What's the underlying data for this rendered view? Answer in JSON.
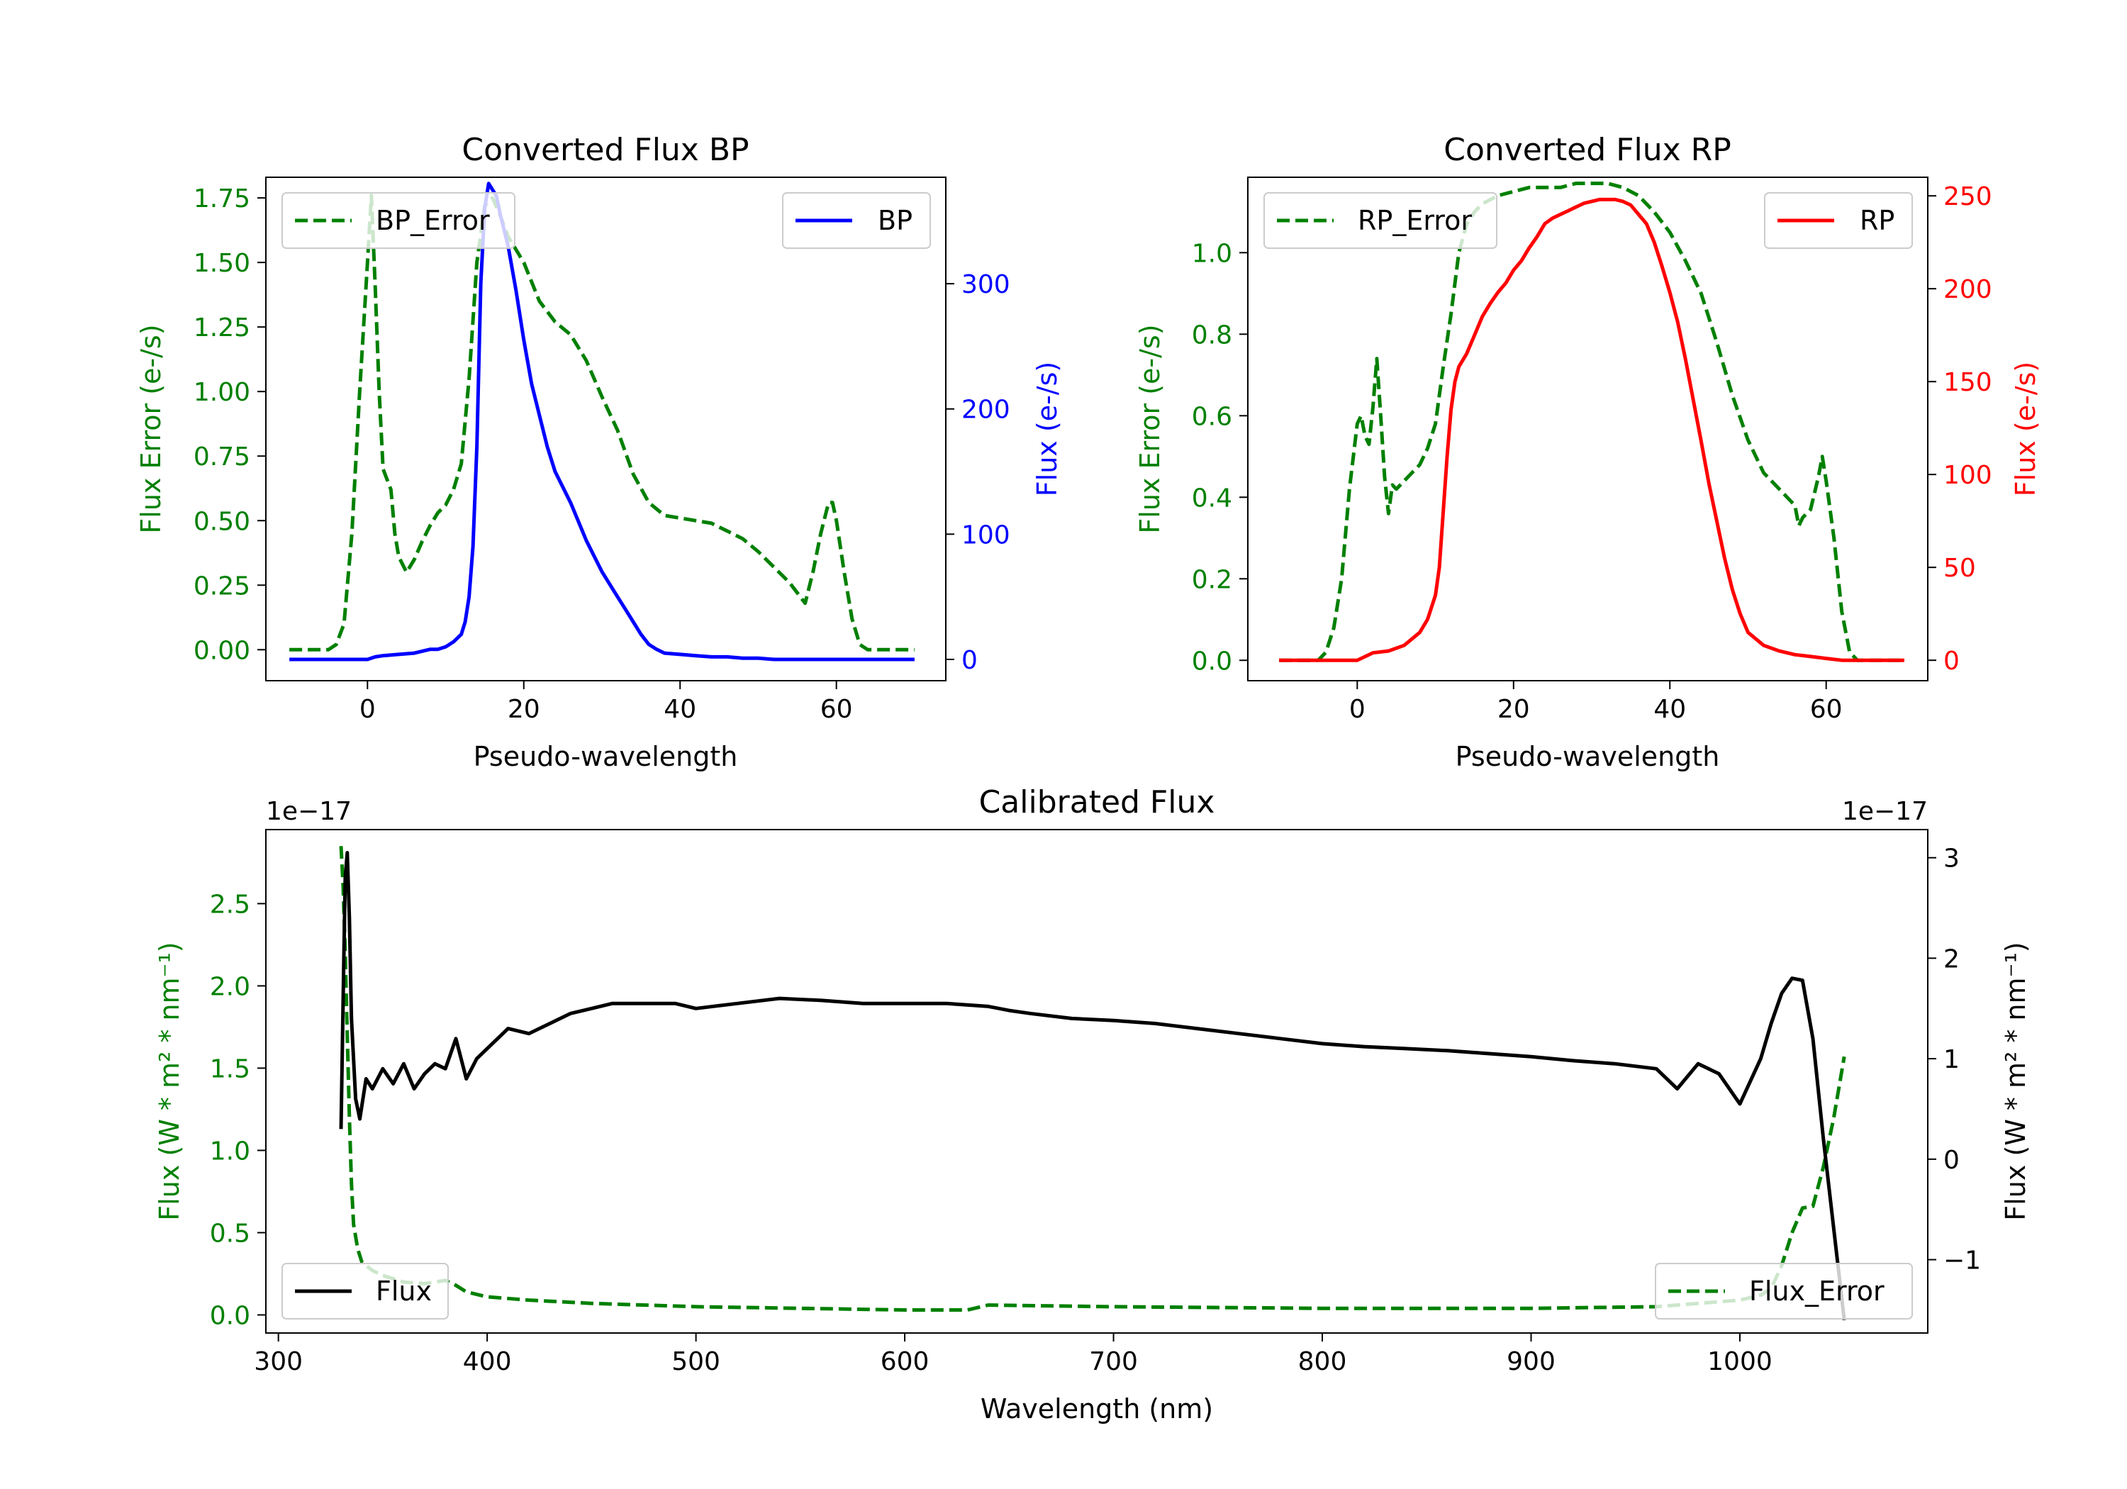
{
  "colors": {
    "error": "#008000",
    "bp": "#0000ff",
    "rp": "#ff0000",
    "flux": "#000000",
    "axis": "#000000",
    "legend_border": "#cccccc"
  },
  "chart_data": [
    {
      "type": "line",
      "title": "Converted Flux BP",
      "xlabel": "Pseudo-wavelength",
      "ylabel_left": "Flux Error (e-/s)",
      "ylabel_right": "Flux (e-/s)",
      "xlim": [
        -13,
        74
      ],
      "ylim_left": [
        -0.12,
        1.83
      ],
      "ylim_right": [
        -17,
        385
      ],
      "xticks": [
        0,
        20,
        40,
        60
      ],
      "yticks_left": [
        0.0,
        0.25,
        0.5,
        0.75,
        1.0,
        1.25,
        1.5,
        1.75
      ],
      "yticks_left_labels": [
        "0.00",
        "0.25",
        "0.50",
        "0.75",
        "1.00",
        "1.25",
        "1.50",
        "1.75"
      ],
      "yticks_right": [
        0,
        100,
        200,
        300
      ],
      "legend_left_label": "BP_Error",
      "legend_right_label": "BP",
      "series": [
        {
          "name": "BP_Error",
          "axis": "left",
          "style": "dashed",
          "color": "error",
          "x": [
            -10,
            -5,
            -4,
            -3,
            -2,
            -1,
            0,
            0.5,
            1,
            1.5,
            2,
            3,
            3.5,
            4,
            5,
            6,
            7,
            8,
            9,
            10,
            11,
            12,
            13,
            14,
            15,
            16,
            17,
            18,
            20,
            22,
            24,
            26,
            28,
            30,
            32,
            34,
            36,
            38,
            40,
            42,
            44,
            46,
            48,
            50,
            52,
            54,
            55,
            56,
            57,
            58,
            59,
            59.5,
            60,
            61,
            62,
            63,
            64,
            65,
            70
          ],
          "values": [
            0,
            0,
            0.02,
            0.1,
            0.45,
            1.0,
            1.5,
            1.76,
            1.4,
            1.0,
            0.7,
            0.62,
            0.45,
            0.36,
            0.3,
            0.35,
            0.42,
            0.48,
            0.53,
            0.56,
            0.62,
            0.72,
            1.05,
            1.5,
            1.72,
            1.75,
            1.68,
            1.6,
            1.5,
            1.35,
            1.27,
            1.22,
            1.12,
            0.98,
            0.85,
            0.68,
            0.57,
            0.52,
            0.51,
            0.5,
            0.49,
            0.46,
            0.43,
            0.38,
            0.32,
            0.26,
            0.22,
            0.18,
            0.3,
            0.45,
            0.57,
            0.57,
            0.5,
            0.3,
            0.12,
            0.02,
            0.0,
            0,
            0
          ]
        },
        {
          "name": "BP",
          "axis": "right",
          "style": "solid",
          "color": "bp",
          "x": [
            -10,
            0,
            1,
            2,
            4,
            6,
            8,
            9,
            10,
            11,
            12,
            12.5,
            13,
            13.5,
            14,
            14.5,
            15,
            15.5,
            16,
            16.5,
            17,
            18,
            19,
            20,
            21,
            22,
            23,
            24,
            26,
            28,
            30,
            32,
            33,
            34,
            35,
            36,
            37,
            38,
            40,
            42,
            44,
            46,
            48,
            50,
            52,
            54,
            56,
            60,
            65,
            70
          ],
          "values": [
            0,
            0,
            2,
            3,
            4,
            5,
            8,
            8,
            10,
            14,
            20,
            30,
            50,
            90,
            170,
            300,
            360,
            380,
            375,
            370,
            355,
            330,
            295,
            255,
            220,
            195,
            170,
            150,
            125,
            95,
            70,
            50,
            40,
            30,
            20,
            12,
            8,
            5,
            4,
            3,
            2,
            2,
            1,
            1,
            0,
            0,
            0,
            0,
            0,
            0
          ]
        }
      ]
    },
    {
      "type": "line",
      "title": "Converted Flux RP",
      "xlabel": "Pseudo-wavelength",
      "ylabel_left": "Flux Error (e-/s)",
      "ylabel_right": "Flux (e-/s)",
      "xlim": [
        -14,
        73
      ],
      "ylim_left": [
        -0.05,
        1.185
      ],
      "ylim_right": [
        -11,
        260
      ],
      "xticks": [
        0,
        20,
        40,
        60
      ],
      "yticks_left": [
        0.0,
        0.2,
        0.4,
        0.6,
        0.8,
        1.0
      ],
      "yticks_left_labels": [
        "0.0",
        "0.2",
        "0.4",
        "0.6",
        "0.8",
        "1.0"
      ],
      "yticks_right": [
        0,
        50,
        100,
        150,
        200,
        250
      ],
      "legend_left_label": "RP_Error",
      "legend_right_label": "RP",
      "series": [
        {
          "name": "RP_Error",
          "axis": "left",
          "style": "dashed",
          "color": "error",
          "x": [
            -10,
            -5,
            -4,
            -3,
            -2,
            -1,
            0,
            0.5,
            1,
            1.5,
            2,
            2.5,
            3,
            3.5,
            4,
            4.5,
            5,
            6,
            7,
            8,
            9,
            10,
            11,
            12,
            13,
            14,
            15,
            16,
            18,
            20,
            22,
            24,
            26,
            28,
            30,
            32,
            34,
            36,
            38,
            40,
            42,
            44,
            46,
            48,
            50,
            52,
            54,
            56,
            56.5,
            57,
            58,
            59,
            59.5,
            60,
            61,
            62,
            63,
            64,
            65,
            70
          ],
          "values": [
            0,
            0,
            0.02,
            0.08,
            0.2,
            0.42,
            0.58,
            0.6,
            0.55,
            0.53,
            0.62,
            0.74,
            0.6,
            0.45,
            0.36,
            0.43,
            0.42,
            0.44,
            0.46,
            0.48,
            0.52,
            0.58,
            0.72,
            0.85,
            1.0,
            1.07,
            1.1,
            1.12,
            1.14,
            1.15,
            1.16,
            1.16,
            1.16,
            1.17,
            1.17,
            1.17,
            1.16,
            1.14,
            1.1,
            1.05,
            0.98,
            0.9,
            0.78,
            0.65,
            0.54,
            0.46,
            0.42,
            0.38,
            0.33,
            0.35,
            0.37,
            0.45,
            0.5,
            0.44,
            0.3,
            0.12,
            0.02,
            0.0,
            0,
            0
          ]
        },
        {
          "name": "RP",
          "axis": "right",
          "style": "solid",
          "color": "rp",
          "x": [
            -10,
            0,
            2,
            4,
            6,
            8,
            9,
            10,
            10.5,
            11,
            11.5,
            12,
            12.5,
            13,
            14,
            15,
            16,
            17,
            18,
            19,
            20,
            21,
            22,
            23,
            24,
            25,
            26,
            27,
            28,
            29,
            30,
            31,
            32,
            33,
            34,
            35,
            36,
            37,
            38,
            39,
            40,
            41,
            42,
            43,
            44,
            45,
            46,
            47,
            48,
            49,
            50,
            52,
            54,
            56,
            58,
            60,
            62,
            65,
            70
          ],
          "values": [
            0,
            0,
            4,
            5,
            8,
            15,
            22,
            35,
            50,
            80,
            110,
            135,
            150,
            158,
            165,
            175,
            185,
            192,
            198,
            203,
            210,
            215,
            222,
            228,
            235,
            238,
            240,
            242,
            244,
            246,
            247,
            248,
            248,
            248,
            247,
            245,
            240,
            235,
            225,
            212,
            198,
            182,
            162,
            140,
            118,
            95,
            75,
            55,
            38,
            25,
            15,
            8,
            5,
            3,
            2,
            1,
            0,
            0,
            0
          ]
        }
      ]
    },
    {
      "type": "line",
      "title": "Calibrated Flux",
      "xlabel": "Wavelength (nm)",
      "ylabel_left": "Flux (W * m² * nm⁻¹)",
      "ylabel_right": "Flux (W * m² * nm⁻¹)",
      "offset_left": "1e−17",
      "offset_right": "1e−17",
      "xlim": [
        294,
        1090
      ],
      "ylim_left": [
        -0.11,
        2.95
      ],
      "ylim_right": [
        -1.73,
        3.28
      ],
      "xticks": [
        300,
        400,
        500,
        600,
        700,
        800,
        900,
        1000
      ],
      "yticks_left": [
        0.0,
        0.5,
        1.0,
        1.5,
        2.0,
        2.5
      ],
      "yticks_left_labels": [
        "0.0",
        "0.5",
        "1.0",
        "1.5",
        "2.0",
        "2.5"
      ],
      "yticks_right": [
        -1,
        0,
        1,
        2,
        3
      ],
      "yticks_right_labels": [
        "−1",
        "0",
        "1",
        "2",
        "3"
      ],
      "legend_left_label": "Flux",
      "legend_right_label": "Flux_Error",
      "series": [
        {
          "name": "Flux_Error",
          "axis": "left",
          "style": "dashed",
          "color": "error",
          "x": [
            330,
            331,
            332,
            333,
            334,
            335,
            336,
            338,
            340,
            345,
            350,
            360,
            370,
            375,
            380,
            385,
            390,
            400,
            420,
            450,
            500,
            550,
            600,
            630,
            640,
            700,
            800,
            900,
            960,
            1000,
            1010,
            1015,
            1020,
            1025,
            1030,
            1035,
            1040,
            1045,
            1050
          ],
          "values": [
            2.85,
            2.6,
            2.2,
            1.7,
            1.2,
            0.8,
            0.55,
            0.4,
            0.32,
            0.27,
            0.24,
            0.2,
            0.19,
            0.2,
            0.21,
            0.18,
            0.14,
            0.11,
            0.09,
            0.07,
            0.05,
            0.04,
            0.03,
            0.03,
            0.06,
            0.05,
            0.04,
            0.04,
            0.05,
            0.09,
            0.12,
            0.16,
            0.3,
            0.5,
            0.65,
            0.66,
            0.9,
            1.2,
            1.57
          ]
        },
        {
          "name": "Flux",
          "axis": "right",
          "style": "solid",
          "color": "flux",
          "x": [
            330,
            331,
            332,
            333,
            334,
            335,
            337,
            339,
            342,
            345,
            350,
            355,
            360,
            365,
            370,
            375,
            380,
            385,
            390,
            395,
            400,
            410,
            420,
            430,
            440,
            450,
            460,
            470,
            480,
            490,
            500,
            520,
            540,
            560,
            580,
            600,
            620,
            640,
            650,
            660,
            680,
            700,
            720,
            740,
            760,
            780,
            800,
            820,
            840,
            860,
            880,
            900,
            920,
            940,
            960,
            970,
            980,
            990,
            1000,
            1010,
            1015,
            1020,
            1025,
            1030,
            1035,
            1040,
            1045,
            1050
          ],
          "values": [
            0.3,
            1.6,
            2.8,
            3.05,
            2.4,
            1.4,
            0.6,
            0.4,
            0.8,
            0.7,
            0.9,
            0.75,
            0.95,
            0.7,
            0.85,
            0.95,
            0.9,
            1.2,
            0.8,
            1.0,
            1.1,
            1.3,
            1.25,
            1.35,
            1.45,
            1.5,
            1.55,
            1.55,
            1.55,
            1.55,
            1.5,
            1.55,
            1.6,
            1.58,
            1.55,
            1.55,
            1.55,
            1.52,
            1.48,
            1.45,
            1.4,
            1.38,
            1.35,
            1.3,
            1.25,
            1.2,
            1.15,
            1.12,
            1.1,
            1.08,
            1.05,
            1.02,
            0.98,
            0.95,
            0.9,
            0.7,
            0.95,
            0.85,
            0.55,
            1.0,
            1.35,
            1.65,
            1.8,
            1.78,
            1.2,
            0.2,
            -0.7,
            -1.6
          ]
        }
      ]
    }
  ]
}
